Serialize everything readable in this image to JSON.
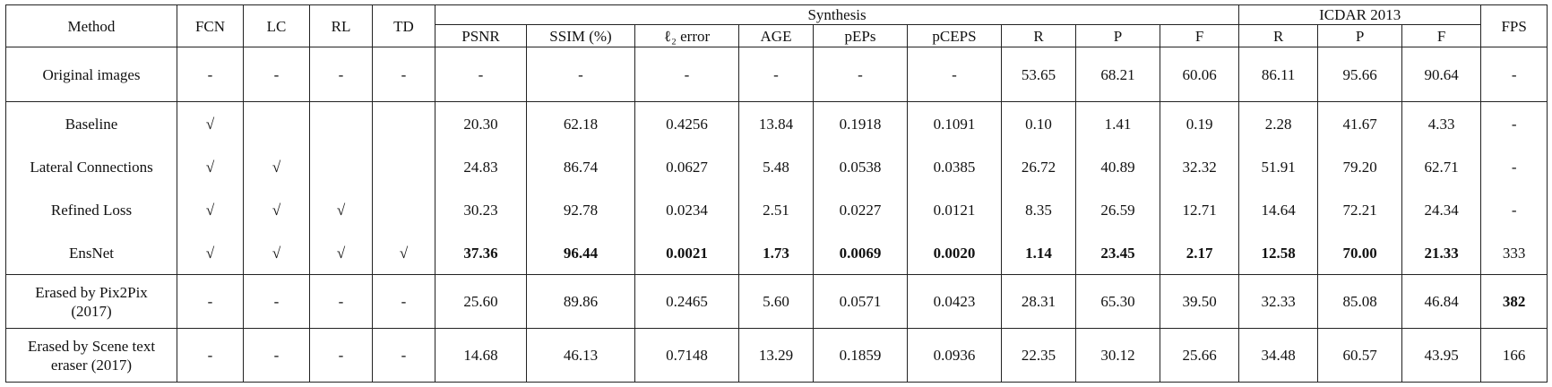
{
  "table": {
    "header": {
      "method": "Method",
      "flags": [
        "FCN",
        "LC",
        "RL",
        "TD"
      ],
      "groups": [
        {
          "label": "Synthesis",
          "columns": [
            "PSNR",
            "SSIM (%)",
            "ℓ₂ error",
            "AGE",
            "pEPs",
            "pCEPS",
            "R",
            "P",
            "F"
          ]
        },
        {
          "label": "ICDAR 2013",
          "columns": [
            "R",
            "P",
            "F"
          ]
        }
      ],
      "fps": "FPS"
    },
    "row_groups": [
      [
        {
          "cells": [
            "Original images",
            "-",
            "-",
            "-",
            "-",
            "-",
            "-",
            "-",
            "-",
            "-",
            "-",
            "53.65",
            "68.21",
            "60.06",
            "86.11",
            "95.66",
            "90.64",
            "-"
          ],
          "bold": []
        }
      ],
      [
        {
          "cells": [
            "Baseline",
            "√",
            null,
            null,
            null,
            "20.30",
            "62.18",
            "0.4256",
            "13.84",
            "0.1918",
            "0.1091",
            "0.10",
            "1.41",
            "0.19",
            "2.28",
            "41.67",
            "4.33",
            "-"
          ],
          "bold": []
        },
        {
          "cells": [
            "Lateral Connections",
            "√",
            "√",
            null,
            null,
            "24.83",
            "86.74",
            "0.0627",
            "5.48",
            "0.0538",
            "0.0385",
            "26.72",
            "40.89",
            "32.32",
            "51.91",
            "79.20",
            "62.71",
            "-"
          ],
          "bold": []
        },
        {
          "cells": [
            "Refined Loss",
            "√",
            "√",
            "√",
            null,
            "30.23",
            "92.78",
            "0.0234",
            "2.51",
            "0.0227",
            "0.0121",
            "8.35",
            "26.59",
            "12.71",
            "14.64",
            "72.21",
            "24.34",
            "-"
          ],
          "bold": []
        },
        {
          "cells": [
            "EnsNet",
            "√",
            "√",
            "√",
            "√",
            "37.36",
            "96.44",
            "0.0021",
            "1.73",
            "0.0069",
            "0.0020",
            "1.14",
            "23.45",
            "2.17",
            "12.58",
            "70.00",
            "21.33",
            "333"
          ],
          "bold": [
            5,
            6,
            7,
            8,
            9,
            10,
            11,
            12,
            13,
            14,
            15,
            16
          ]
        }
      ],
      [
        {
          "cells": [
            "Erased by Pix2Pix (2017)",
            "-",
            "-",
            "-",
            "-",
            "25.60",
            "89.86",
            "0.2465",
            "5.60",
            "0.0571",
            "0.0423",
            "28.31",
            "65.30",
            "39.50",
            "32.33",
            "85.08",
            "46.84",
            "382"
          ],
          "bold": [
            17
          ]
        }
      ],
      [
        {
          "cells": [
            "Erased by Scene text eraser (2017)",
            "-",
            "-",
            "-",
            "-",
            "14.68",
            "46.13",
            "0.7148",
            "13.29",
            "0.1859",
            "0.0936",
            "22.35",
            "30.12",
            "25.66",
            "34.48",
            "60.57",
            "43.95",
            "166"
          ],
          "bold": []
        }
      ]
    ]
  }
}
